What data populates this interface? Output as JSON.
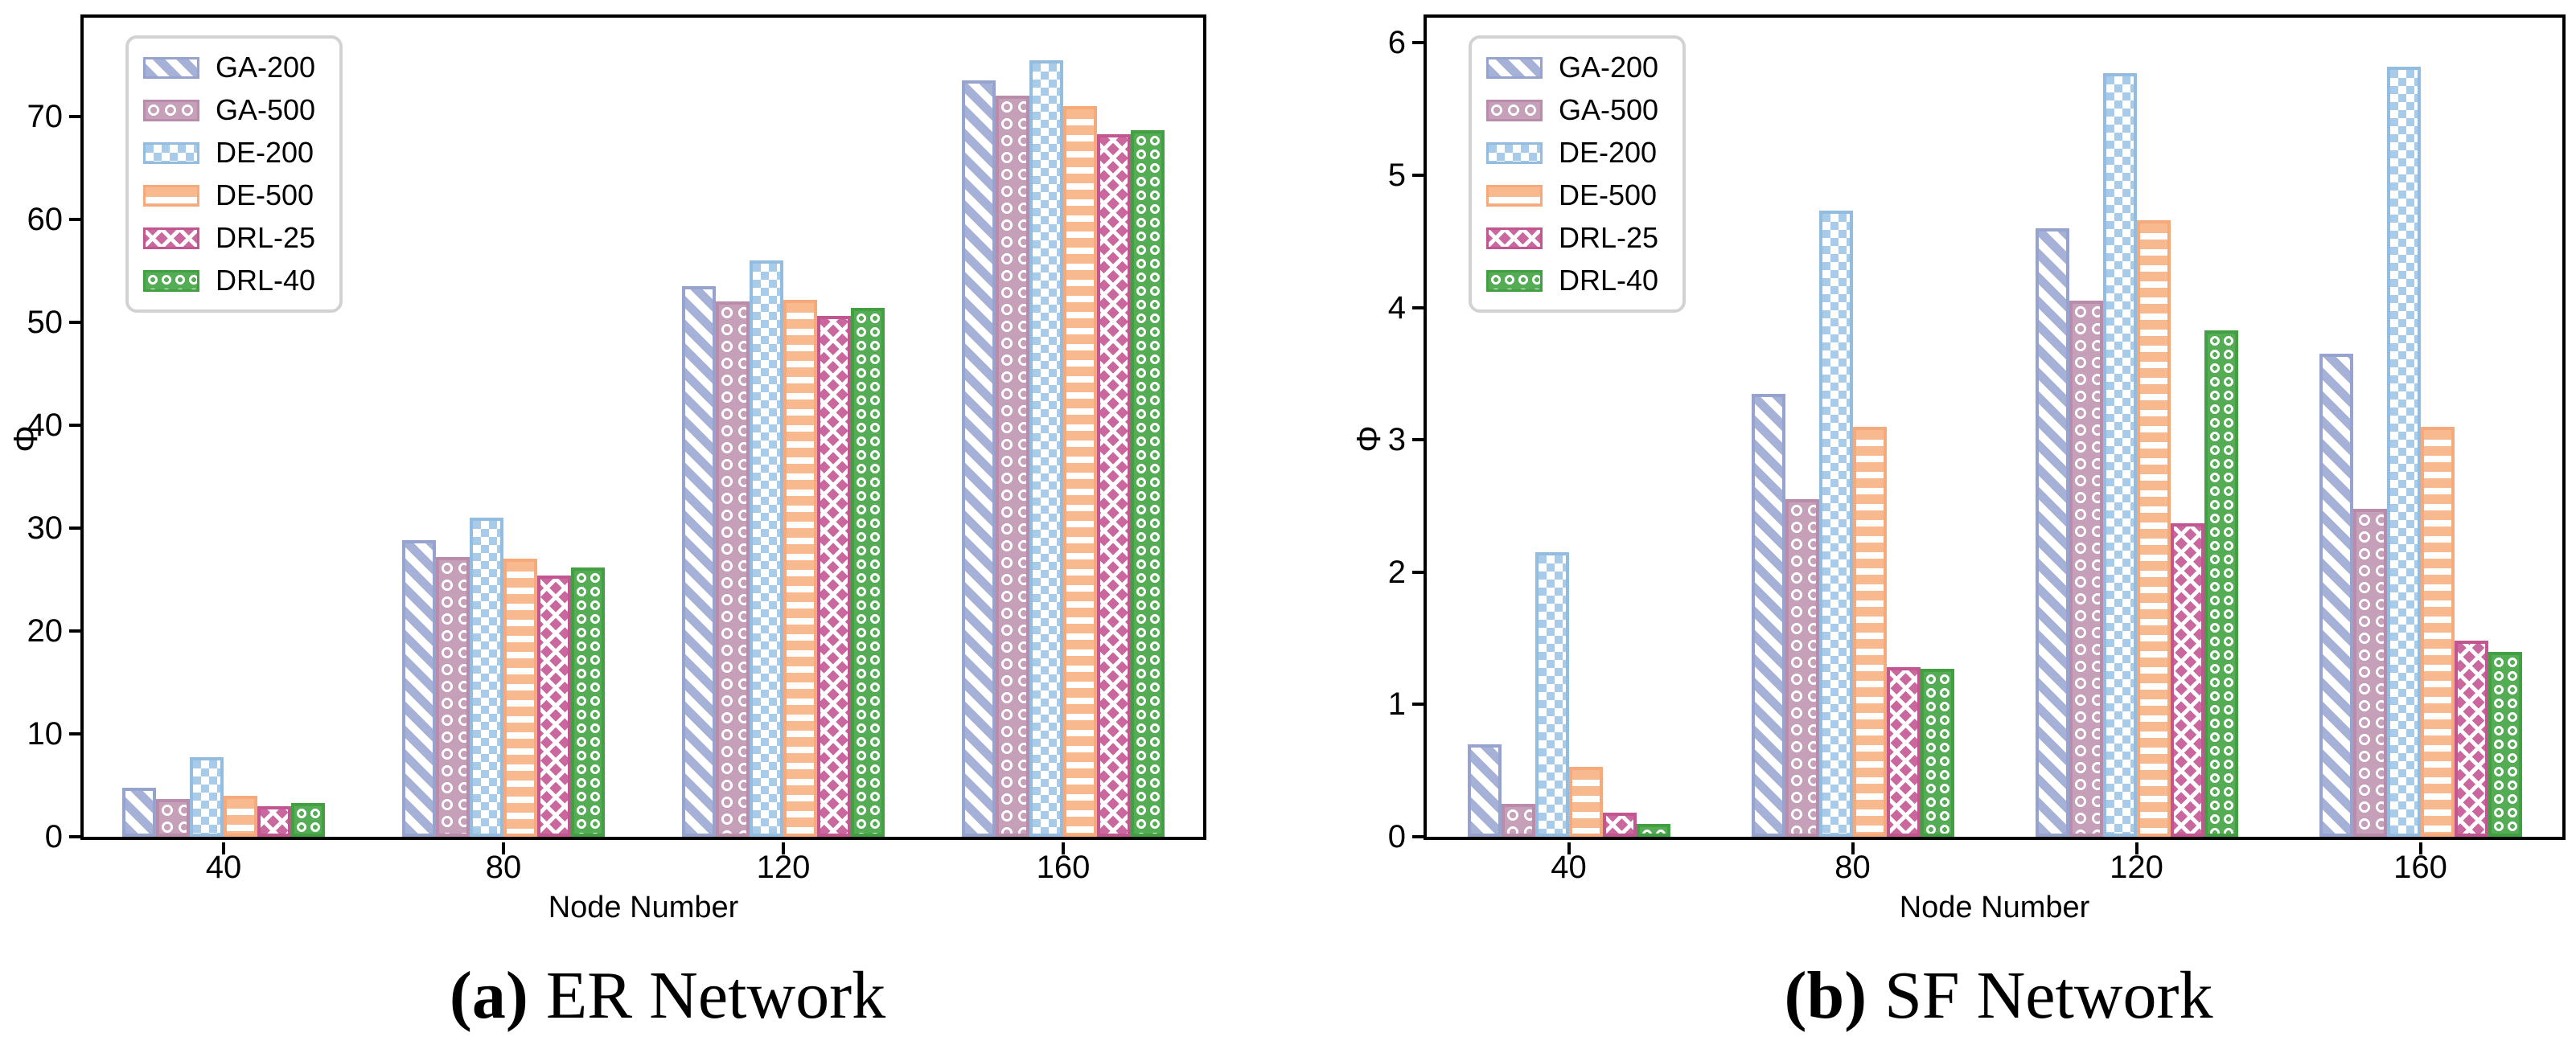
{
  "figure": {
    "background": "#ffffff",
    "caption_a_prefix": "(a)",
    "caption_a_text": "ER Network",
    "caption_b_prefix": "(b)",
    "caption_b_text": "SF Network"
  },
  "series_styles": [
    {
      "name": "GA-200",
      "fill": "#a6b1d8",
      "edge": "#96a3cf",
      "pattern": "diagonal-hatch"
    },
    {
      "name": "GA-500",
      "fill": "#c69fb9",
      "edge": "#b98cab",
      "pattern": "white-rings"
    },
    {
      "name": "DE-200",
      "fill": "#a7cbe9",
      "edge": "#92bce0",
      "pattern": "white-squares"
    },
    {
      "name": "DE-500",
      "fill": "#f9b98f",
      "edge": "#f6a97b",
      "pattern": "horizontal-lines"
    },
    {
      "name": "DRL-25",
      "fill": "#ca679e",
      "edge": "#c25691",
      "pattern": "diamond-crosshatch"
    },
    {
      "name": "DRL-40",
      "fill": "#54ad54",
      "edge": "#42a042",
      "pattern": "small-dots"
    }
  ],
  "chart_data": [
    {
      "type": "bar",
      "caption_prefix": "(a)",
      "caption_text": "ER Network",
      "xlabel": "Node Number",
      "ylabel": "Φ",
      "categories": [
        "40",
        "80",
        "120",
        "160"
      ],
      "yticks": [
        0,
        10,
        20,
        30,
        40,
        50,
        60,
        70
      ],
      "ylim": [
        0,
        79.6
      ],
      "grid": false,
      "legend_position": "upper left",
      "legend": [
        "GA-200",
        "GA-500",
        "DE-200",
        "DE-500",
        "DRL-25",
        "DRL-40"
      ],
      "series": [
        {
          "name": "GA-200",
          "values": [
            4.8,
            28.8,
            53.5,
            73.5
          ]
        },
        {
          "name": "GA-500",
          "values": [
            3.7,
            27.2,
            52.0,
            72.0
          ]
        },
        {
          "name": "DE-200",
          "values": [
            7.7,
            31.0,
            56.0,
            75.5
          ]
        },
        {
          "name": "DE-500",
          "values": [
            4.0,
            27.0,
            52.2,
            71.0
          ]
        },
        {
          "name": "DRL-25",
          "values": [
            3.0,
            25.4,
            50.6,
            68.3
          ]
        },
        {
          "name": "DRL-40",
          "values": [
            3.3,
            26.2,
            51.4,
            68.7
          ]
        }
      ]
    },
    {
      "type": "bar",
      "caption_prefix": "(b)",
      "caption_text": "SF Network",
      "xlabel": "Node Number",
      "ylabel": "Φ",
      "categories": [
        "40",
        "80",
        "120",
        "160"
      ],
      "yticks": [
        0,
        1,
        2,
        3,
        4,
        5,
        6
      ],
      "ylim": [
        0,
        6.19
      ],
      "grid": false,
      "legend_position": "upper left",
      "legend": [
        "GA-200",
        "GA-500",
        "DE-200",
        "DE-500",
        "DRL-25",
        "DRL-40"
      ],
      "series": [
        {
          "name": "GA-200",
          "values": [
            0.7,
            3.35,
            4.6,
            3.65
          ]
        },
        {
          "name": "GA-500",
          "values": [
            0.25,
            2.55,
            4.05,
            2.48
          ]
        },
        {
          "name": "DE-200",
          "values": [
            2.15,
            4.73,
            5.77,
            5.82
          ]
        },
        {
          "name": "DE-500",
          "values": [
            0.53,
            3.1,
            4.66,
            3.1
          ]
        },
        {
          "name": "DRL-25",
          "values": [
            0.18,
            1.28,
            2.37,
            1.48
          ]
        },
        {
          "name": "DRL-40",
          "values": [
            0.1,
            1.27,
            3.83,
            1.4
          ]
        }
      ]
    }
  ]
}
